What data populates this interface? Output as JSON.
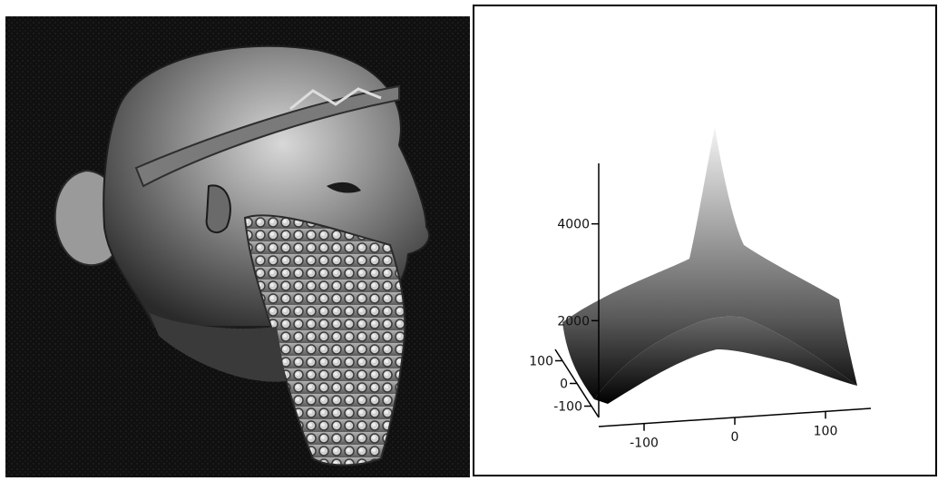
{
  "photo": {
    "icon": "bearded-head-sculpture-image",
    "background_color": "#0d0d0d"
  },
  "chart_data": {
    "type": "surface",
    "title": "",
    "xlabel": "",
    "ylabel": "",
    "zlabel": "",
    "x_ticks": [
      -100,
      0,
      100
    ],
    "y_ticks": [
      100,
      0,
      -100
    ],
    "z_ticks": [
      2000,
      4000
    ],
    "x_range": [
      -150,
      150
    ],
    "y_range": [
      -150,
      150
    ],
    "z_range": [
      0,
      6000
    ],
    "peak": {
      "x": 0,
      "y": 0,
      "z": 6000
    },
    "grid": false,
    "legend": "none",
    "colormap": "grayscale",
    "frame_color": "#000000"
  }
}
